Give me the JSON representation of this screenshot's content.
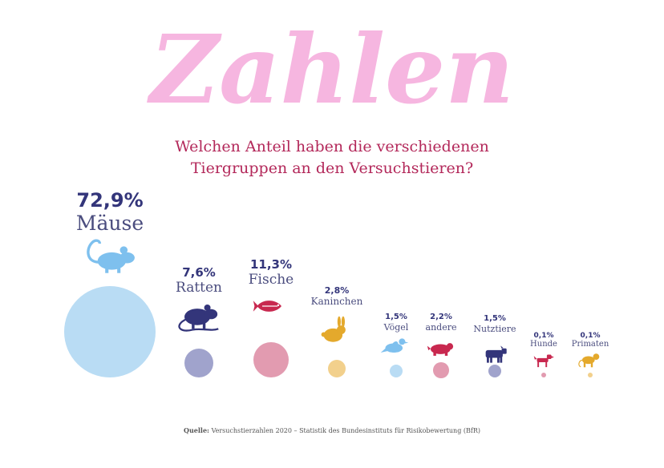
{
  "headline": "Zahlen",
  "subtitle_lines": [
    "Welchen Anteil haben die verschiedenen",
    "Tiergruppen an den Versuchstieren?"
  ],
  "source": {
    "label": "Quelle:",
    "text": "Versuchstierzahlen 2020 – Statistik des Bundesinstituts für Risikobewertung (BfR)"
  },
  "colors": {
    "headline": "#f6b6e0",
    "subtitle": "#b3285a",
    "percent": "#33357a",
    "label": "#4a4c7e"
  },
  "chart_data": {
    "type": "bubble",
    "categories": [
      "Mäuse",
      "Ratten",
      "Fische",
      "Kaninchen",
      "Vögel",
      "andere",
      "Nutztiere",
      "Hunde",
      "Primaten"
    ],
    "values": [
      72.9,
      7.6,
      11.3,
      2.8,
      1.5,
      2.2,
      1.5,
      0.1,
      0.1
    ],
    "value_labels": [
      "72,9%",
      "7,6%",
      "11,3%",
      "2,8%",
      "1,5%",
      "2,2%",
      "1,5%",
      "0,1%",
      "0,1%"
    ],
    "unit": "%",
    "icons": [
      "mouse-icon",
      "rat-icon",
      "fish-icon",
      "rabbit-icon",
      "bird-icon",
      "other-animal-icon",
      "cow-icon",
      "dog-icon",
      "monkey-icon"
    ],
    "colors": [
      "#b9dcf4",
      "#a0a3cc",
      "#e29bb0",
      "#f2d08c",
      "#b9dcf4",
      "#e29bb0",
      "#a0a3cc",
      "#e29bb0",
      "#f2d08c"
    ],
    "icon_colors": [
      "#7ec0ee",
      "#33357a",
      "#c8284f",
      "#e4a92c",
      "#7ec0ee",
      "#c8284f",
      "#33357a",
      "#c8284f",
      "#e4a92c"
    ]
  }
}
